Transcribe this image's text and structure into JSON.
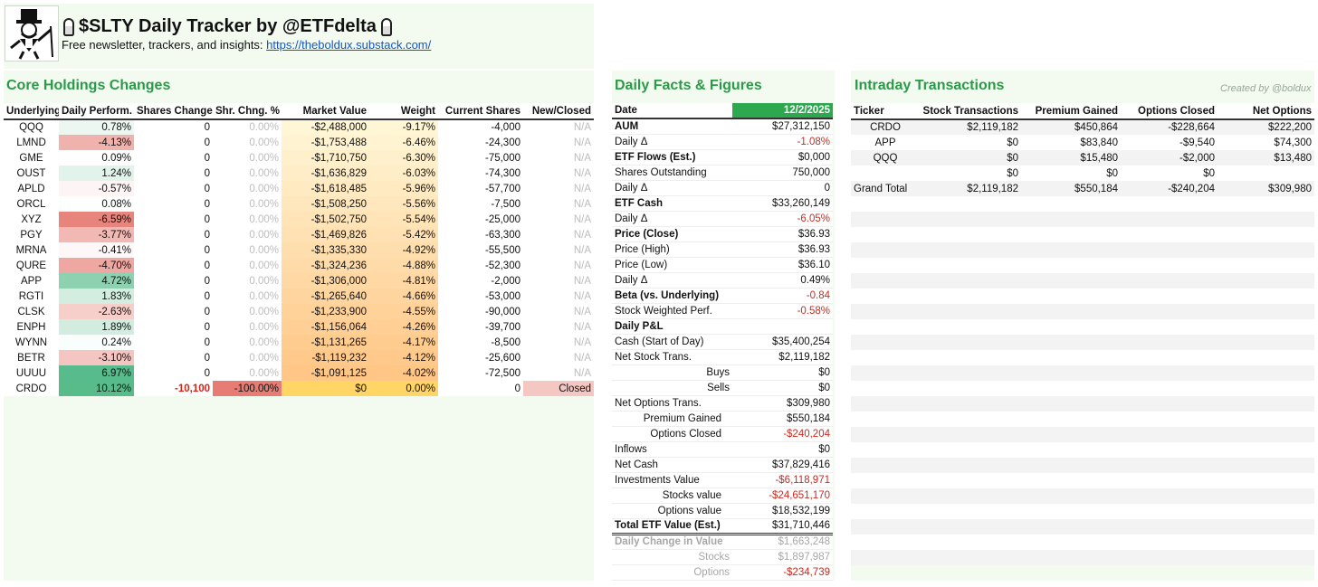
{
  "header": {
    "title": "$SLTY Daily Tracker by @ETFdelta",
    "subtitle_prefix": "Free newsletter, trackers, and insights: ",
    "link": "https://theboldux.substack.com/",
    "logo_icon": "monopoly-man-icon",
    "salt_icon": "salt-shaker-icon"
  },
  "holdings": {
    "title": "Core Holdings Changes",
    "columns": [
      "Underlying",
      "Daily Perform.",
      "Shares Change",
      "Shr. Chng. %",
      "Market Value",
      "Weight",
      "Current Shares",
      "New/Closed"
    ],
    "rows": [
      {
        "ticker": "QQQ",
        "perf": "0.78%",
        "perf_val": 0.78,
        "shares_change": "0",
        "shr_pct": "0.00%",
        "mv": "-$2,488,000",
        "weight": "-9.17%",
        "cur": "-4,000",
        "status": "N/A"
      },
      {
        "ticker": "LMND",
        "perf": "-4.13%",
        "perf_val": -4.13,
        "shares_change": "0",
        "shr_pct": "0.00%",
        "mv": "-$1,753,488",
        "weight": "-6.46%",
        "cur": "-24,300",
        "status": "N/A"
      },
      {
        "ticker": "GME",
        "perf": "0.09%",
        "perf_val": 0.09,
        "shares_change": "0",
        "shr_pct": "0.00%",
        "mv": "-$1,710,750",
        "weight": "-6.30%",
        "cur": "-75,000",
        "status": "N/A"
      },
      {
        "ticker": "OUST",
        "perf": "1.24%",
        "perf_val": 1.24,
        "shares_change": "0",
        "shr_pct": "0.00%",
        "mv": "-$1,636,829",
        "weight": "-6.03%",
        "cur": "-74,300",
        "status": "N/A"
      },
      {
        "ticker": "APLD",
        "perf": "-0.57%",
        "perf_val": -0.57,
        "shares_change": "0",
        "shr_pct": "0.00%",
        "mv": "-$1,618,485",
        "weight": "-5.96%",
        "cur": "-57,700",
        "status": "N/A"
      },
      {
        "ticker": "ORCL",
        "perf": "0.08%",
        "perf_val": 0.08,
        "shares_change": "0",
        "shr_pct": "0.00%",
        "mv": "-$1,508,250",
        "weight": "-5.56%",
        "cur": "-7,500",
        "status": "N/A"
      },
      {
        "ticker": "XYZ",
        "perf": "-6.59%",
        "perf_val": -6.59,
        "shares_change": "0",
        "shr_pct": "0.00%",
        "mv": "-$1,502,750",
        "weight": "-5.54%",
        "cur": "-25,000",
        "status": "N/A"
      },
      {
        "ticker": "PGY",
        "perf": "-3.77%",
        "perf_val": -3.77,
        "shares_change": "0",
        "shr_pct": "0.00%",
        "mv": "-$1,469,826",
        "weight": "-5.42%",
        "cur": "-63,300",
        "status": "N/A"
      },
      {
        "ticker": "MRNA",
        "perf": "-0.41%",
        "perf_val": -0.41,
        "shares_change": "0",
        "shr_pct": "0.00%",
        "mv": "-$1,335,330",
        "weight": "-4.92%",
        "cur": "-55,500",
        "status": "N/A"
      },
      {
        "ticker": "QURE",
        "perf": "-4.70%",
        "perf_val": -4.7,
        "shares_change": "0",
        "shr_pct": "0.00%",
        "mv": "-$1,324,236",
        "weight": "-4.88%",
        "cur": "-52,300",
        "status": "N/A"
      },
      {
        "ticker": "APP",
        "perf": "4.72%",
        "perf_val": 4.72,
        "shares_change": "0",
        "shr_pct": "0.00%",
        "mv": "-$1,306,000",
        "weight": "-4.81%",
        "cur": "-2,000",
        "status": "N/A"
      },
      {
        "ticker": "RGTI",
        "perf": "1.83%",
        "perf_val": 1.83,
        "shares_change": "0",
        "shr_pct": "0.00%",
        "mv": "-$1,265,640",
        "weight": "-4.66%",
        "cur": "-53,000",
        "status": "N/A"
      },
      {
        "ticker": "CLSK",
        "perf": "-2.63%",
        "perf_val": -2.63,
        "shares_change": "0",
        "shr_pct": "0.00%",
        "mv": "-$1,233,900",
        "weight": "-4.55%",
        "cur": "-90,000",
        "status": "N/A"
      },
      {
        "ticker": "ENPH",
        "perf": "1.89%",
        "perf_val": 1.89,
        "shares_change": "0",
        "shr_pct": "0.00%",
        "mv": "-$1,156,064",
        "weight": "-4.26%",
        "cur": "-39,700",
        "status": "N/A"
      },
      {
        "ticker": "WYNN",
        "perf": "0.24%",
        "perf_val": 0.24,
        "shares_change": "0",
        "shr_pct": "0.00%",
        "mv": "-$1,131,265",
        "weight": "-4.17%",
        "cur": "-8,500",
        "status": "N/A"
      },
      {
        "ticker": "BETR",
        "perf": "-3.10%",
        "perf_val": -3.1,
        "shares_change": "0",
        "shr_pct": "0.00%",
        "mv": "-$1,119,232",
        "weight": "-4.12%",
        "cur": "-25,600",
        "status": "N/A"
      },
      {
        "ticker": "UUUU",
        "perf": "6.97%",
        "perf_val": 6.97,
        "shares_change": "0",
        "shr_pct": "0.00%",
        "mv": "-$1,091,125",
        "weight": "-4.02%",
        "cur": "-72,500",
        "status": "N/A"
      },
      {
        "ticker": "CRDO",
        "perf": "10.12%",
        "perf_val": 10.12,
        "shares_change": "-10,100",
        "shr_pct": "-100.00%",
        "mv": "$0",
        "weight": "0.00%",
        "cur": "0",
        "status": "Closed"
      }
    ]
  },
  "facts": {
    "title": "Daily Facts & Figures",
    "date_label": "Date",
    "date_value": "12/2/2025",
    "rows": [
      {
        "label": "AUM",
        "value": "$27,312,150",
        "bold": true,
        "sep": true,
        "neg": false,
        "indent": 0
      },
      {
        "label": "Daily Δ",
        "value": "-1.08%",
        "bold": false,
        "sep": false,
        "neg": true,
        "indent": 0
      },
      {
        "label": "ETF Flows (Est.)",
        "value": "$0,000",
        "bold": true,
        "sep": true,
        "neg": false,
        "indent": 0
      },
      {
        "label": "Shares Outstanding",
        "value": "750,000",
        "bold": false,
        "sep": false,
        "neg": false,
        "indent": 0
      },
      {
        "label": "Daily Δ",
        "value": "0",
        "bold": false,
        "sep": false,
        "neg": false,
        "indent": 0
      },
      {
        "label": "ETF Cash",
        "value": "$33,260,149",
        "bold": true,
        "sep": true,
        "neg": false,
        "indent": 0
      },
      {
        "label": "Daily Δ",
        "value": "-6.05%",
        "bold": false,
        "sep": false,
        "neg": true,
        "indent": 0
      },
      {
        "label": "Price (Close)",
        "value": "$36.93",
        "bold": true,
        "sep": true,
        "neg": false,
        "indent": 0
      },
      {
        "label": "Price (High)",
        "value": "$36.93",
        "bold": false,
        "sep": false,
        "neg": false,
        "indent": 0
      },
      {
        "label": "Price (Low)",
        "value": "$36.10",
        "bold": false,
        "sep": false,
        "neg": false,
        "indent": 0
      },
      {
        "label": "Daily Δ",
        "value": "0.49%",
        "bold": false,
        "sep": false,
        "neg": false,
        "indent": 0
      },
      {
        "label": "Beta (vs. Underlying)",
        "value": "-0.84",
        "bold": true,
        "sep": true,
        "neg": true,
        "indent": 0
      },
      {
        "label": "Stock Weighted Perf.",
        "value": "-0.58%",
        "bold": false,
        "sep": false,
        "neg": true,
        "indent": 0
      },
      {
        "label": "Daily P&L",
        "value": "",
        "bold": true,
        "sep": true,
        "neg": false,
        "indent": 0
      },
      {
        "label": "Cash (Start of Day)",
        "value": "$35,400,254",
        "bold": false,
        "sep": false,
        "neg": false,
        "indent": 0
      },
      {
        "label": "Net Stock Trans.",
        "value": "$2,119,182",
        "bold": false,
        "sep": false,
        "neg": false,
        "indent": 0
      },
      {
        "label": "Buys",
        "value": "$0",
        "bold": false,
        "sep": false,
        "neg": false,
        "indent": 2
      },
      {
        "label": "Sells",
        "value": "$0",
        "bold": false,
        "sep": false,
        "neg": false,
        "indent": 2
      },
      {
        "label": "Net Options Trans.",
        "value": "$309,980",
        "bold": false,
        "sep": true,
        "neg": false,
        "indent": 0
      },
      {
        "label": "Premium Gained",
        "value": "$550,184",
        "bold": false,
        "sep": false,
        "neg": false,
        "indent": 1
      },
      {
        "label": "Options Closed",
        "value": "-$240,204",
        "bold": false,
        "sep": false,
        "neg": true,
        "indent": 1
      },
      {
        "label": "Inflows",
        "value": "$0",
        "bold": false,
        "sep": true,
        "neg": false,
        "indent": 0
      },
      {
        "label": "Net Cash",
        "value": "$37,829,416",
        "bold": false,
        "sep": false,
        "neg": false,
        "indent": 0
      },
      {
        "label": "Investments Value",
        "value": "-$6,118,971",
        "bold": false,
        "sep": false,
        "neg": true,
        "indent": 0
      },
      {
        "label": "Stocks value",
        "value": "-$24,651,170",
        "bold": false,
        "sep": false,
        "neg": true,
        "indent": 1
      },
      {
        "label": "Options value",
        "value": "$18,532,199",
        "bold": false,
        "sep": false,
        "neg": false,
        "indent": 1
      },
      {
        "label": "Total ETF Value (Est.)",
        "value": "$31,710,446",
        "bold": true,
        "sep": true,
        "neg": false,
        "indent": 0,
        "double": true
      },
      {
        "label": "Daily Change in Value",
        "value": "$1,663,248",
        "bold": true,
        "sep": false,
        "neg": false,
        "indent": 0,
        "grey": true
      },
      {
        "label": "Stocks",
        "value": "$1,897,987",
        "bold": false,
        "sep": false,
        "neg": false,
        "indent": 2,
        "grey": true
      },
      {
        "label": "Options",
        "value": "-$234,739",
        "bold": false,
        "sep": false,
        "neg": true,
        "indent": 2,
        "grey": true
      }
    ]
  },
  "intraday": {
    "title": "Intraday Transactions",
    "created": "Created by @boldux",
    "columns": [
      "Ticker",
      "Stock Transactions",
      "Premium Gained",
      "Options Closed",
      "Net Options"
    ],
    "rows": [
      {
        "ticker": "CRDO",
        "stock": "$2,119,182",
        "premium": "$450,864",
        "closed": "-$228,664",
        "net": "$222,200"
      },
      {
        "ticker": "APP",
        "stock": "$0",
        "premium": "$83,840",
        "closed": "-$9,540",
        "net": "$74,300"
      },
      {
        "ticker": "QQQ",
        "stock": "$0",
        "premium": "$15,480",
        "closed": "-$2,000",
        "net": "$13,480"
      },
      {
        "ticker": "",
        "stock": "$0",
        "premium": "$0",
        "closed": "$0",
        "net": ""
      },
      {
        "ticker": "Grand Total",
        "stock": "$2,119,182",
        "premium": "$550,184",
        "closed": "-$240,204",
        "net": "$309,980"
      }
    ]
  },
  "colors": {
    "accent_green": "#2a9a48",
    "date_green": "#2ea84f",
    "negative_red": "#cc2a1f",
    "panel_bg": "#f3fbf1"
  }
}
